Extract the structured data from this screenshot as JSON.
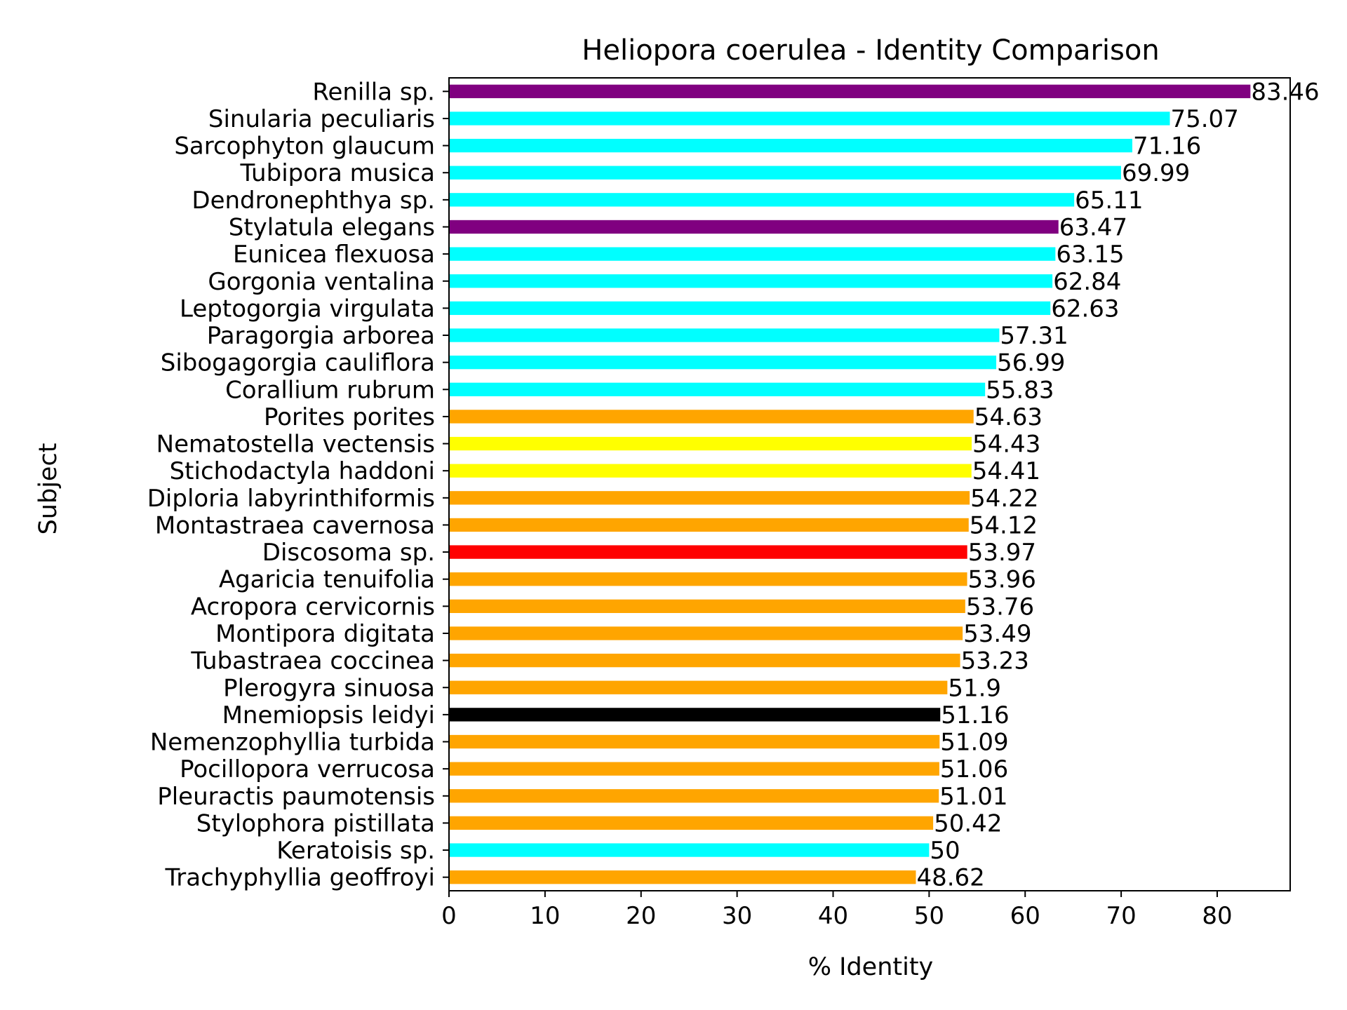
{
  "chart_data": {
    "type": "bar",
    "orientation": "horizontal",
    "title": "Heliopora coerulea - Identity Comparison",
    "xlabel": "% Identity",
    "ylabel": "Subject",
    "xlim": [
      0,
      87.6
    ],
    "xticks": [
      0,
      10,
      20,
      30,
      40,
      50,
      60,
      70,
      80
    ],
    "grid": false,
    "legend": "none",
    "categories": [
      "Renilla sp.",
      "Sinularia peculiaris",
      "Sarcophyton glaucum",
      "Tubipora musica",
      "Dendronephthya sp.",
      "Stylatula elegans",
      "Eunicea flexuosa",
      "Gorgonia ventalina",
      "Leptogorgia virgulata",
      "Paragorgia arborea",
      "Sibogagorgia cauliflora",
      "Corallium rubrum",
      "Porites porites",
      "Nematostella vectensis",
      "Stichodactyla haddoni",
      "Diploria labyrinthiformis",
      "Montastraea cavernosa",
      "Discosoma sp.",
      "Agaricia tenuifolia",
      "Acropora cervicornis",
      "Montipora digitata",
      "Tubastraea coccinea",
      "Plerogyra sinuosa",
      "Mnemiopsis leidyi",
      "Nemenzophyllia turbida",
      "Pocillopora verrucosa",
      "Pleuractis paumotensis",
      "Stylophora pistillata",
      "Keratoisis sp.",
      "Trachyphyllia geoffroyi"
    ],
    "values": [
      83.46,
      75.07,
      71.16,
      69.99,
      65.11,
      63.47,
      63.15,
      62.84,
      62.63,
      57.31,
      56.99,
      55.83,
      54.63,
      54.43,
      54.41,
      54.22,
      54.12,
      53.97,
      53.96,
      53.76,
      53.49,
      53.23,
      51.9,
      51.16,
      51.09,
      51.06,
      51.01,
      50.42,
      50,
      48.62
    ],
    "value_labels": [
      "83.46",
      "75.07",
      "71.16",
      "69.99",
      "65.11",
      "63.47",
      "63.15",
      "62.84",
      "62.63",
      "57.31",
      "56.99",
      "55.83",
      "54.63",
      "54.43",
      "54.41",
      "54.22",
      "54.12",
      "53.97",
      "53.96",
      "53.76",
      "53.49",
      "53.23",
      "51.9",
      "51.16",
      "51.09",
      "51.06",
      "51.01",
      "50.42",
      "50",
      "48.62"
    ],
    "colors": [
      "#800080",
      "#00ffff",
      "#00ffff",
      "#00ffff",
      "#00ffff",
      "#800080",
      "#00ffff",
      "#00ffff",
      "#00ffff",
      "#00ffff",
      "#00ffff",
      "#00ffff",
      "#ffa500",
      "#ffff00",
      "#ffff00",
      "#ffa500",
      "#ffa500",
      "#ff0000",
      "#ffa500",
      "#ffa500",
      "#ffa500",
      "#ffa500",
      "#ffa500",
      "#000000",
      "#ffa500",
      "#ffa500",
      "#ffa500",
      "#ffa500",
      "#00ffff",
      "#ffa500"
    ]
  }
}
